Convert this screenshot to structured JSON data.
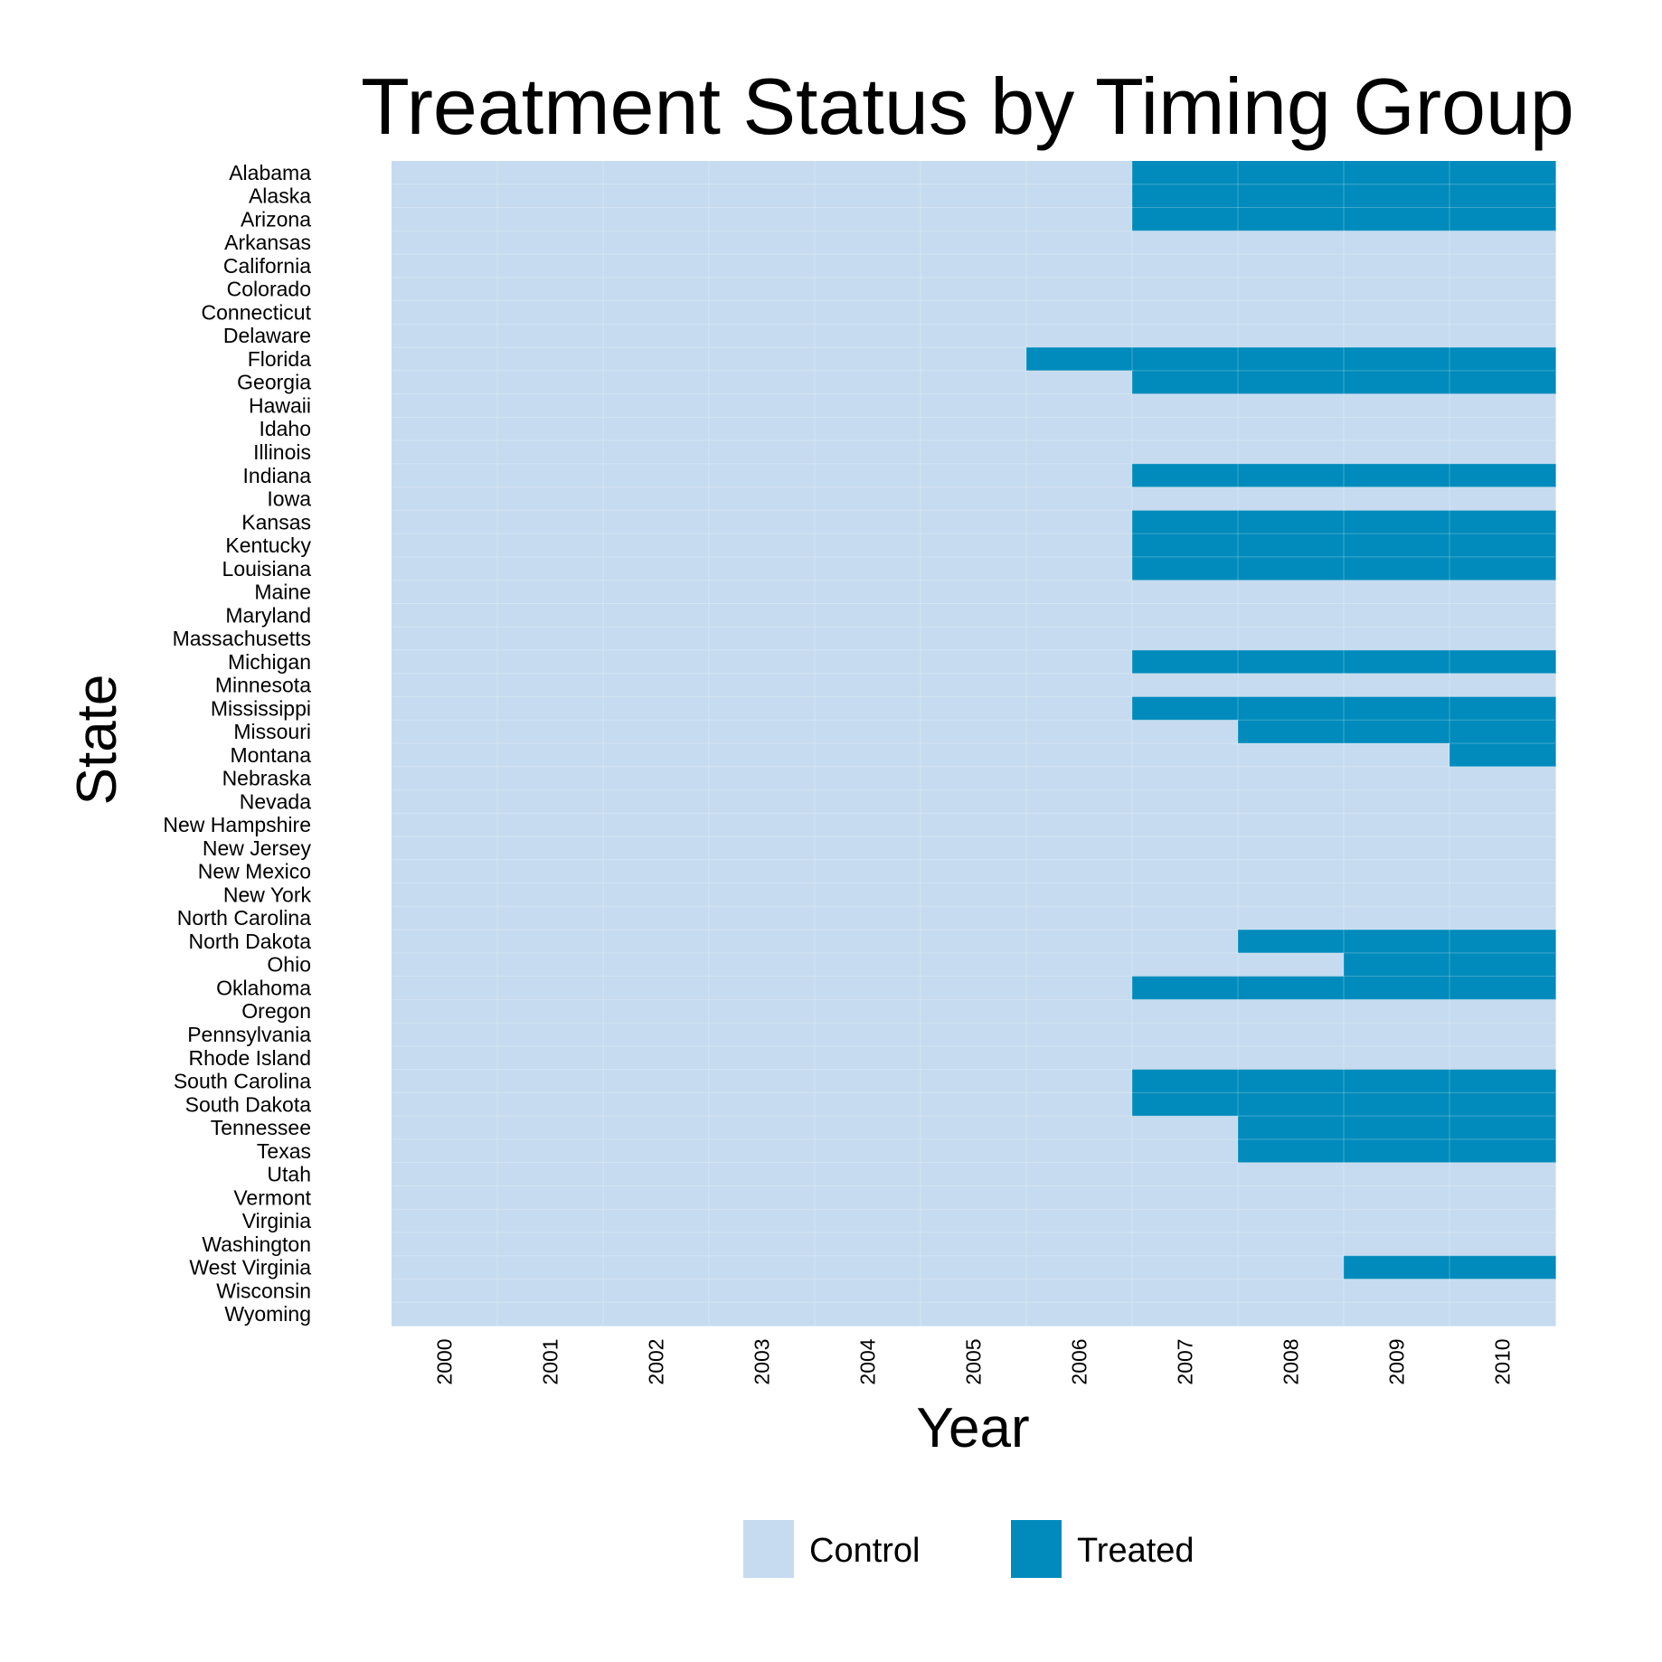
{
  "chart_data": {
    "type": "heatmap",
    "title": "Treatment Status by Timing Group",
    "xlabel": "Year",
    "ylabel": "State",
    "x": [
      "2000",
      "2001",
      "2002",
      "2003",
      "2004",
      "2005",
      "2006",
      "2007",
      "2008",
      "2009",
      "2010"
    ],
    "y": [
      "Alabama",
      "Alaska",
      "Arizona",
      "Arkansas",
      "California",
      "Colorado",
      "Connecticut",
      "Delaware",
      "Florida",
      "Georgia",
      "Hawaii",
      "Idaho",
      "Illinois",
      "Indiana",
      "Iowa",
      "Kansas",
      "Kentucky",
      "Louisiana",
      "Maine",
      "Maryland",
      "Massachusetts",
      "Michigan",
      "Minnesota",
      "Mississippi",
      "Missouri",
      "Montana",
      "Nebraska",
      "Nevada",
      "New Hampshire",
      "New Jersey",
      "New Mexico",
      "New York",
      "North Carolina",
      "North Dakota",
      "Ohio",
      "Oklahoma",
      "Oregon",
      "Pennsylvania",
      "Rhode Island",
      "South Carolina",
      "South Dakota",
      "Tennessee",
      "Texas",
      "Utah",
      "Vermont",
      "Virginia",
      "Washington",
      "West Virginia",
      "Wisconsin",
      "Wyoming"
    ],
    "first_treated_year": {
      "Alabama": 2007,
      "Alaska": 2007,
      "Arizona": 2007,
      "Florida": 2006,
      "Georgia": 2007,
      "Indiana": 2007,
      "Kansas": 2007,
      "Kentucky": 2007,
      "Louisiana": 2007,
      "Michigan": 2007,
      "Mississippi": 2007,
      "Missouri": 2008,
      "Montana": 2010,
      "North Dakota": 2008,
      "Ohio": 2009,
      "Oklahoma": 2007,
      "South Carolina": 2007,
      "South Dakota": 2007,
      "Tennessee": 2008,
      "Texas": 2008,
      "West Virginia": 2009
    },
    "legend": {
      "position": "bottom",
      "entries": [
        {
          "label": "Control",
          "color": "#c6dbef"
        },
        {
          "label": "Treated",
          "color": "#008bbc"
        }
      ]
    },
    "grid": true
  }
}
